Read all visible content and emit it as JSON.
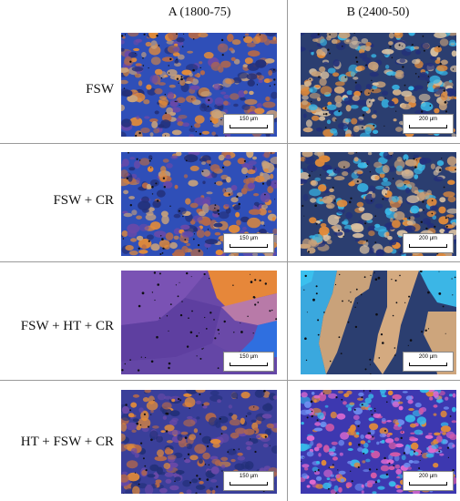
{
  "columns": [
    "A (1800-75)",
    "B (2400-50)"
  ],
  "rows": [
    {
      "label": "FSW",
      "scale_a": "150 µm",
      "scale_b": "200 µm"
    },
    {
      "label": "FSW + CR",
      "scale_a": "150 µm",
      "scale_b": "200 µm"
    },
    {
      "label": "FSW + HT + CR",
      "scale_a": "150 µm",
      "scale_b": "200 µm"
    },
    {
      "label": "HT + FSW + CR",
      "scale_a": "150 µm",
      "scale_b": "200 µm"
    }
  ],
  "palette": {
    "blue": "#2f4fb8",
    "deep_blue": "#23307a",
    "purple": "#6a49a8",
    "orange": "#e08a3a",
    "tan": "#c9a27a",
    "cyan": "#38b8e8",
    "navy": "#2b3e70",
    "pink": "#d25aa8"
  }
}
